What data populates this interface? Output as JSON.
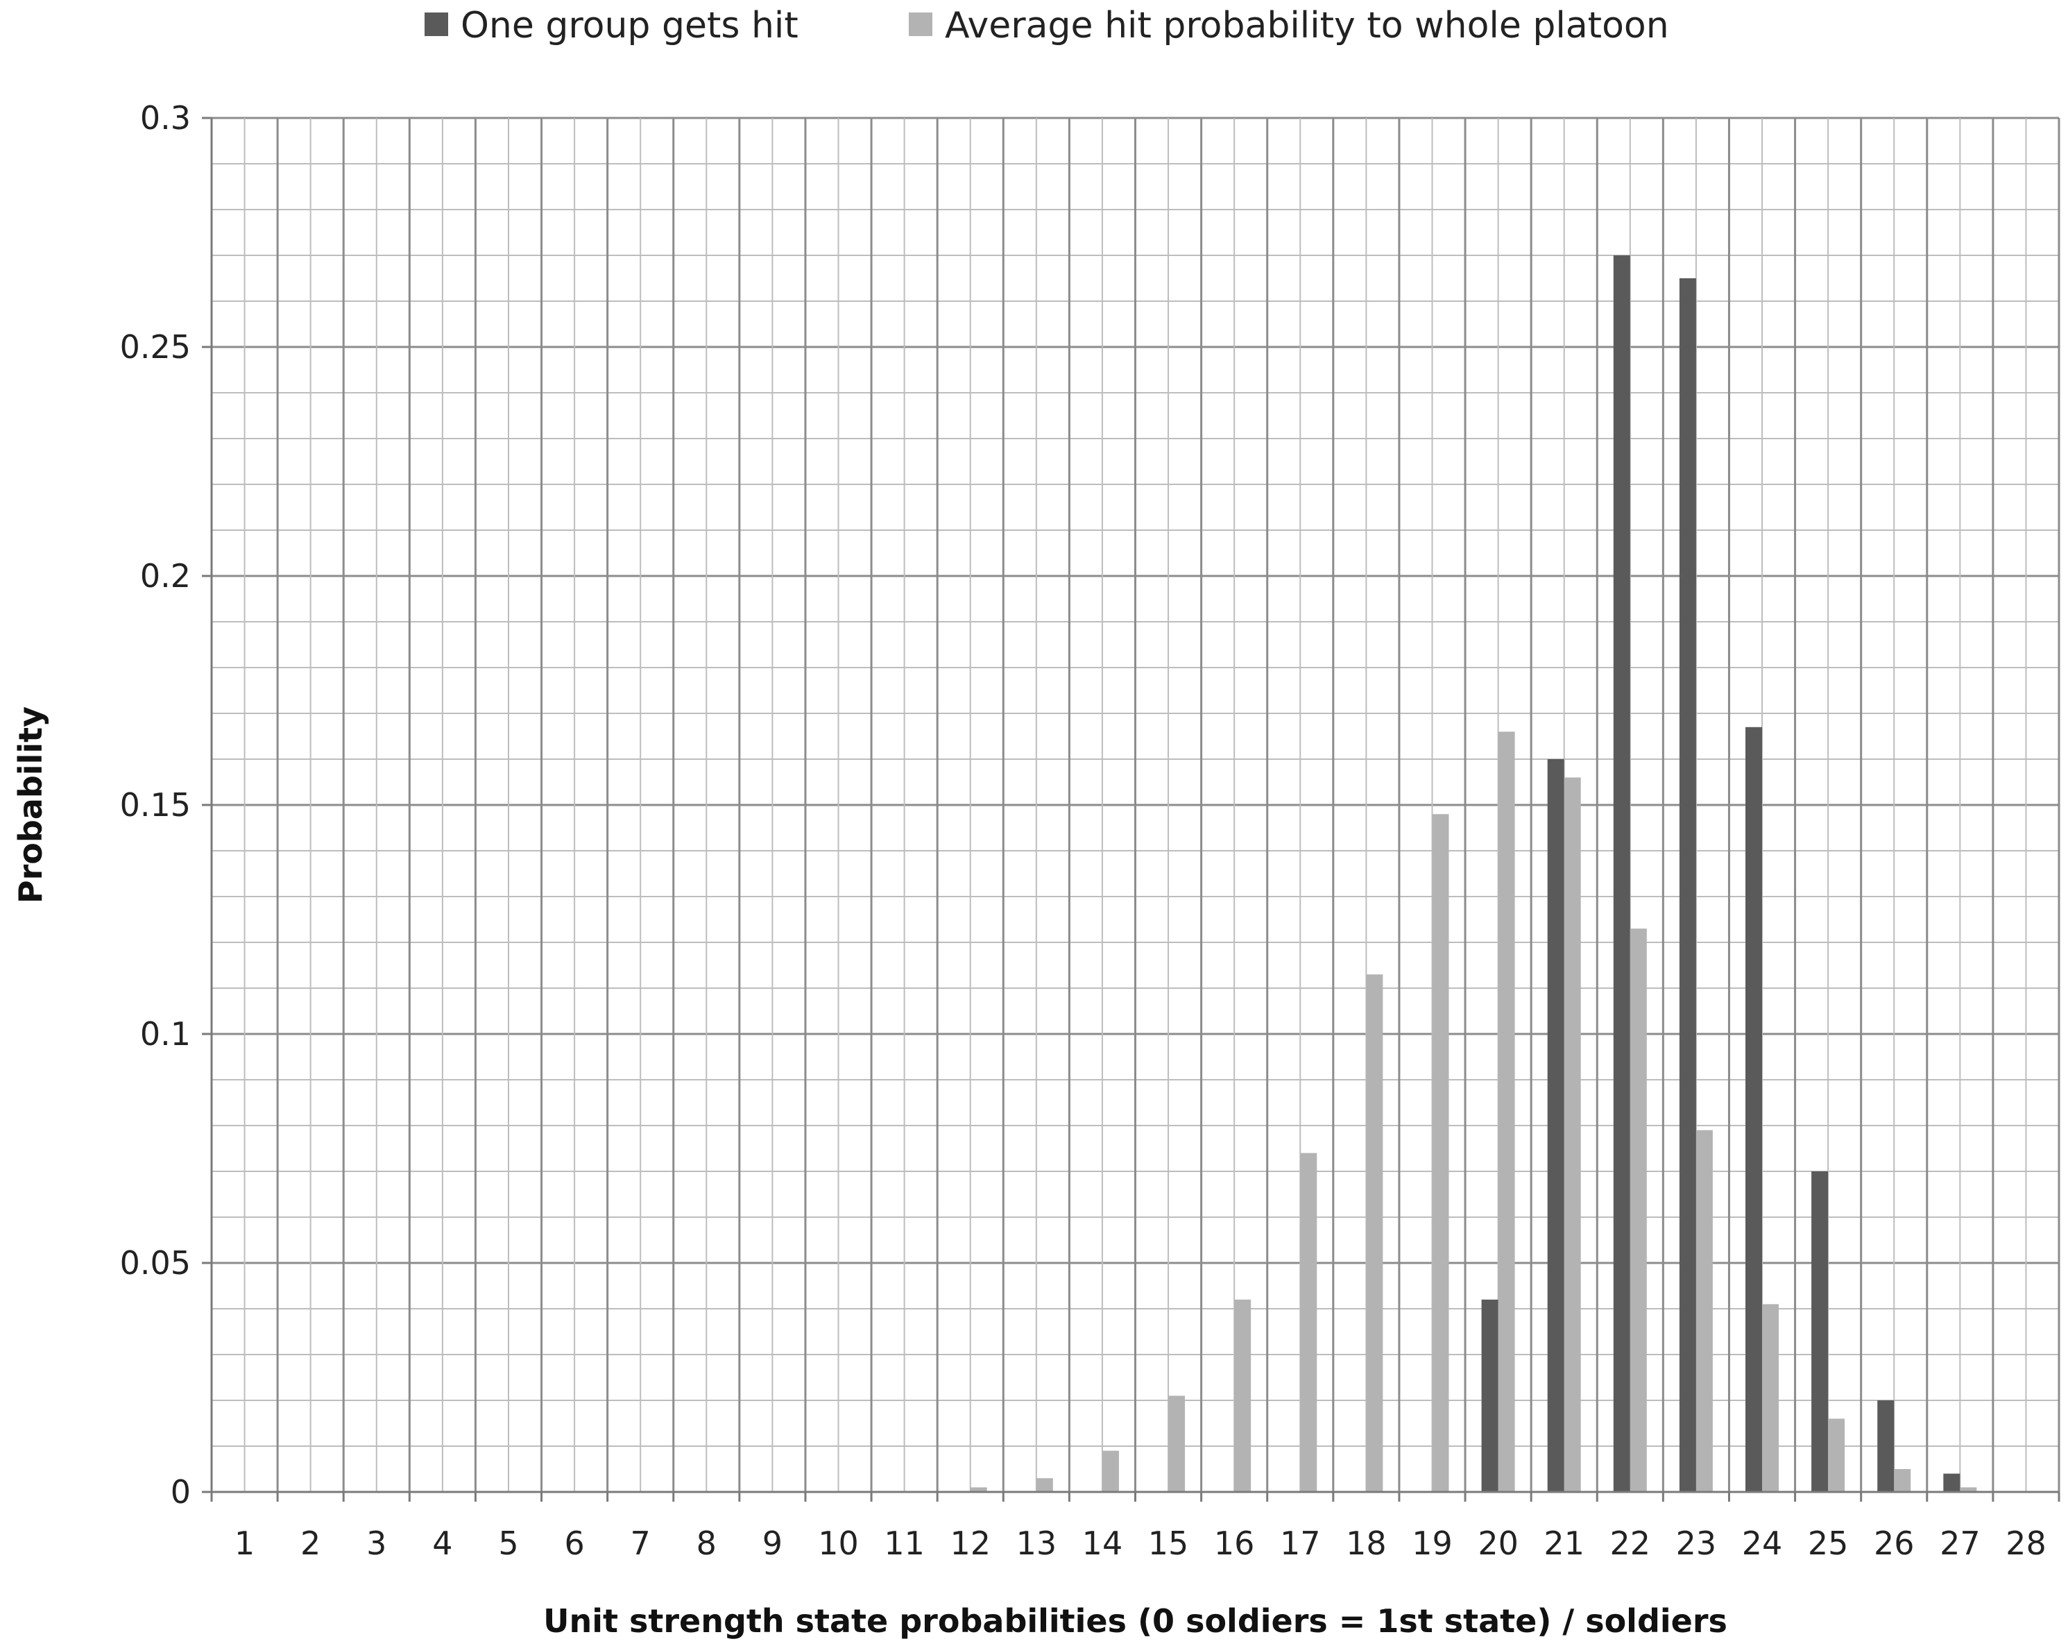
{
  "chart_data": {
    "type": "bar",
    "title": "",
    "xlabel": "Unit strength state probabilities (0 soldiers = 1st state) / soldiers",
    "ylabel": "Probability",
    "categories": [
      "1",
      "2",
      "3",
      "4",
      "5",
      "6",
      "7",
      "8",
      "9",
      "10",
      "11",
      "12",
      "13",
      "14",
      "15",
      "16",
      "17",
      "18",
      "19",
      "20",
      "21",
      "22",
      "23",
      "24",
      "25",
      "26",
      "27",
      "28"
    ],
    "ylim": [
      0,
      0.3
    ],
    "yticks": [
      0,
      0.05,
      0.1,
      0.15,
      0.2,
      0.25,
      0.3
    ],
    "ytick_labels": [
      "0",
      "0.05",
      "0.1",
      "0.15",
      "0.2",
      "0.25",
      "0.3"
    ],
    "grid": true,
    "legend_position": "top",
    "series": [
      {
        "name": "One group gets hit",
        "color": "#5a5a5a",
        "values": [
          0,
          0,
          0,
          0,
          0,
          0,
          0,
          0,
          0,
          0,
          0,
          0,
          0,
          0,
          0,
          0,
          0,
          0,
          0,
          0.042,
          0.16,
          0.27,
          0.265,
          0.167,
          0.07,
          0.02,
          0.004,
          0
        ]
      },
      {
        "name": "Average hit probability to whole platoon",
        "color": "#b3b3b3",
        "values": [
          0,
          0,
          0,
          0,
          0,
          0,
          0,
          0,
          0,
          0,
          0,
          0.001,
          0.003,
          0.009,
          0.021,
          0.042,
          0.074,
          0.113,
          0.148,
          0.166,
          0.156,
          0.123,
          0.079,
          0.041,
          0.016,
          0.005,
          0.001,
          0
        ]
      }
    ]
  }
}
